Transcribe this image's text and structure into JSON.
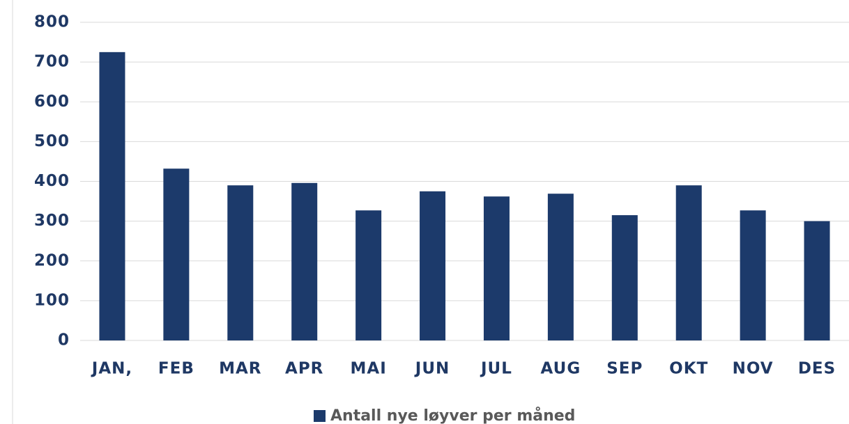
{
  "chart_data": {
    "type": "bar",
    "categories": [
      "JAN,",
      "FEB",
      "MAR",
      "APR",
      "MAI",
      "JUN",
      "JUL",
      "AUG",
      "SEP",
      "OKT",
      "NOV",
      "DES"
    ],
    "series": [
      {
        "name": "Antall nye løyver per måned",
        "color": "#1c3a6b",
        "values": [
          725,
          432,
          390,
          396,
          327,
          375,
          362,
          369,
          315,
          390,
          327,
          300
        ]
      }
    ],
    "ylim": [
      0,
      800
    ],
    "yticks": [
      0,
      100,
      200,
      300,
      400,
      500,
      600,
      700,
      800
    ],
    "grid": true
  }
}
